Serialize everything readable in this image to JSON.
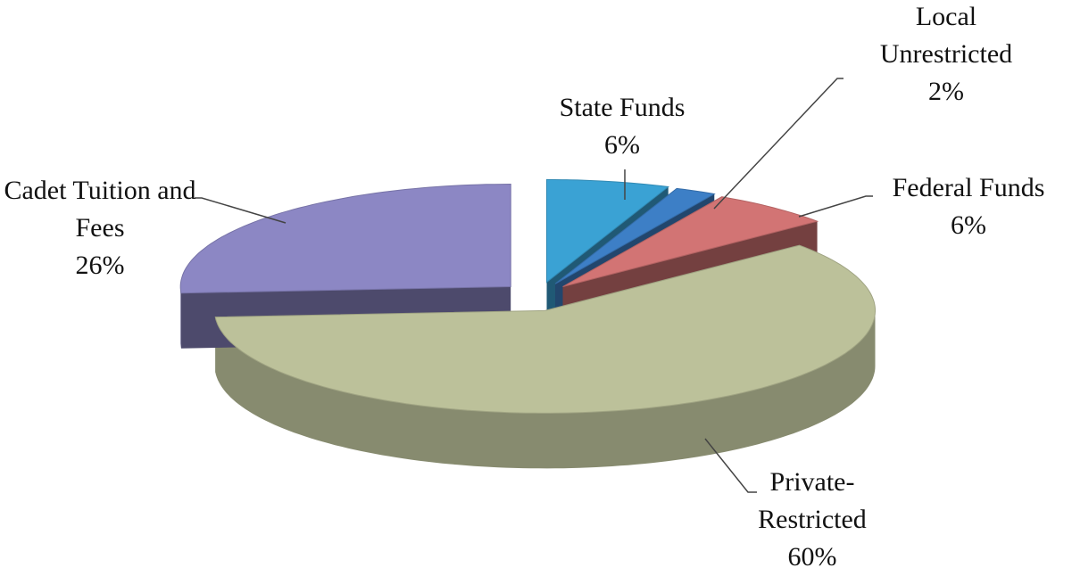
{
  "chart_data": {
    "type": "pie",
    "categories": [
      "State Funds",
      "Local Unrestricted",
      "Federal Funds",
      "Private-Restricted",
      "Cadet Tuition and Fees"
    ],
    "values": [
      6,
      2,
      6,
      60,
      26
    ],
    "value_labels": [
      "6%",
      "2%",
      "6%",
      "60%",
      "26%"
    ],
    "colors": [
      "#3aa2d4",
      "#3d7fc6",
      "#d27474",
      "#bcc19a",
      "#8c87c4"
    ]
  }
}
